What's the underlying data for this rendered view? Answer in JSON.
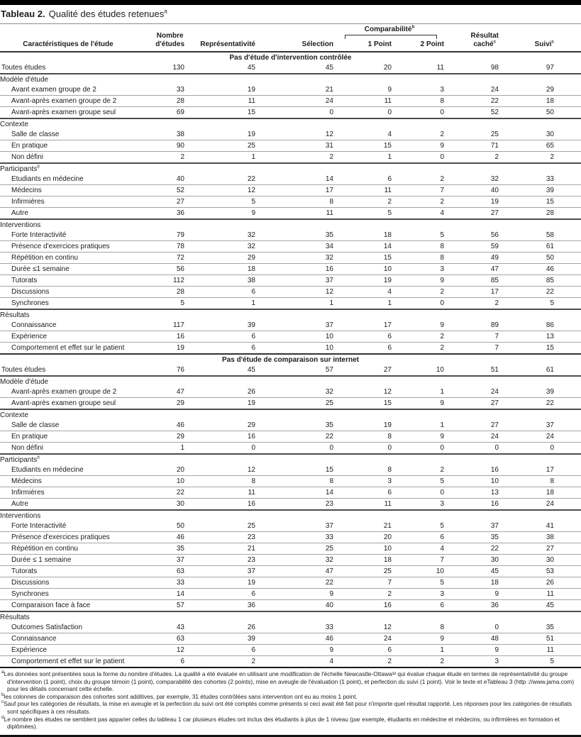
{
  "title": {
    "label": "Tableau 2.",
    "text": "Qualité des études retenues",
    "sup": "a"
  },
  "table": {
    "columns": {
      "characteristics": "Caractéristiques de l'étude",
      "n_studies": {
        "line1": "Nombre",
        "line2": "d'études"
      },
      "representativeness": "Représentativité",
      "selection": "Sélection",
      "comparability": {
        "label": "Comparabilité",
        "sup": "b",
        "point1": "1 Point",
        "point2": "2 Point"
      },
      "hidden_result": {
        "line1": "Résultat",
        "line2": "caché",
        "sup": "c"
      },
      "follow_up": {
        "label": "Suivi",
        "sup": "c"
      }
    },
    "sections": [
      {
        "header": "Pas d'étude d'intervention contrôlée",
        "rows": [
          {
            "type": "total",
            "label": "Toutes études",
            "values": [
              130,
              45,
              45,
              20,
              11,
              98,
              97
            ]
          },
          {
            "type": "group",
            "label": "Modèle d'étude"
          },
          {
            "type": "item",
            "label": "Avant examen groupe de 2",
            "values": [
              33,
              19,
              21,
              9,
              3,
              24,
              29
            ]
          },
          {
            "type": "item",
            "label": "Avant-après examen groupe de 2",
            "values": [
              28,
              11,
              24,
              11,
              8,
              22,
              18
            ]
          },
          {
            "type": "item",
            "label": "Avant-après examen groupe seul",
            "values": [
              69,
              15,
              0,
              0,
              0,
              52,
              50
            ]
          },
          {
            "type": "group",
            "label": "Contexte"
          },
          {
            "type": "item",
            "label": "Salle de classe",
            "values": [
              38,
              19,
              12,
              4,
              2,
              25,
              30
            ]
          },
          {
            "type": "item",
            "label": "En pratique",
            "values": [
              90,
              25,
              31,
              15,
              9,
              71,
              65
            ]
          },
          {
            "type": "item",
            "label": "Non défini",
            "values": [
              2,
              1,
              2,
              1,
              0,
              2,
              2
            ]
          },
          {
            "type": "group",
            "label": "Participants",
            "sup": "d"
          },
          {
            "type": "item",
            "label": "Etudiants en médecine",
            "values": [
              40,
              22,
              14,
              6,
              2,
              32,
              33
            ]
          },
          {
            "type": "item",
            "label": "Médecins",
            "values": [
              52,
              12,
              17,
              11,
              7,
              40,
              39
            ]
          },
          {
            "type": "item",
            "label": "Infirmières",
            "values": [
              27,
              5,
              8,
              2,
              2,
              19,
              15
            ]
          },
          {
            "type": "item",
            "label": "Autre",
            "values": [
              36,
              9,
              11,
              5,
              4,
              27,
              28
            ]
          },
          {
            "type": "group",
            "label": "Interventions"
          },
          {
            "type": "item",
            "label": "Forte Interactivité",
            "values": [
              79,
              32,
              35,
              18,
              5,
              56,
              58
            ]
          },
          {
            "type": "item",
            "label": "Présence d'exercices pratiques",
            "values": [
              78,
              32,
              34,
              14,
              8,
              59,
              61
            ]
          },
          {
            "type": "item",
            "label": "Répétition en continu",
            "values": [
              72,
              29,
              32,
              15,
              8,
              49,
              50
            ]
          },
          {
            "type": "item",
            "label": "Durée ≤1 semaine",
            "values": [
              56,
              18,
              16,
              10,
              3,
              47,
              46
            ]
          },
          {
            "type": "item",
            "label": "Tutorats",
            "values": [
              112,
              38,
              37,
              19,
              9,
              85,
              85
            ]
          },
          {
            "type": "item",
            "label": "Discussions",
            "values": [
              28,
              6,
              12,
              4,
              2,
              17,
              22
            ]
          },
          {
            "type": "item",
            "label": "Synchrones",
            "values": [
              5,
              1,
              1,
              1,
              0,
              2,
              5
            ]
          },
          {
            "type": "group",
            "label": "Résultats"
          },
          {
            "type": "item",
            "label": "Connaissance",
            "values": [
              117,
              39,
              37,
              17,
              9,
              89,
              86
            ]
          },
          {
            "type": "item",
            "label": "Expérience",
            "values": [
              16,
              6,
              10,
              6,
              2,
              7,
              13
            ]
          },
          {
            "type": "item",
            "label": "Comportement et effet sur le patient",
            "values": [
              19,
              6,
              10,
              6,
              2,
              7,
              15
            ]
          }
        ]
      },
      {
        "header": "Pas d'étude de comparaison sur internet",
        "rows": [
          {
            "type": "total",
            "label": "Toutes études",
            "values": [
              76,
              45,
              57,
              27,
              10,
              51,
              61
            ]
          },
          {
            "type": "group",
            "label": "Modèle d'étude"
          },
          {
            "type": "item",
            "label": "Avant-après examen groupe de 2",
            "values": [
              47,
              26,
              32,
              12,
              1,
              24,
              39
            ]
          },
          {
            "type": "item",
            "label": "Avant-après examen groupe seul",
            "values": [
              29,
              19,
              25,
              15,
              9,
              27,
              22
            ]
          },
          {
            "type": "group",
            "label": "Contexte"
          },
          {
            "type": "item",
            "label": "Salle de classe",
            "values": [
              46,
              29,
              35,
              19,
              1,
              27,
              37
            ]
          },
          {
            "type": "item",
            "label": "En pratique",
            "values": [
              29,
              16,
              22,
              8,
              9,
              24,
              24
            ]
          },
          {
            "type": "item",
            "label": "Non défini",
            "values": [
              1,
              0,
              0,
              0,
              0,
              0,
              0
            ]
          },
          {
            "type": "group",
            "label": "Participants",
            "sup": "d"
          },
          {
            "type": "item",
            "label": "Etudiants en médecine",
            "values": [
              20,
              12,
              15,
              8,
              2,
              16,
              17
            ]
          },
          {
            "type": "item",
            "label": "Médecins",
            "values": [
              10,
              8,
              8,
              3,
              5,
              10,
              8
            ]
          },
          {
            "type": "item",
            "label": "Infirmières",
            "values": [
              22,
              11,
              14,
              6,
              0,
              13,
              18
            ]
          },
          {
            "type": "item",
            "label": "Autre",
            "values": [
              30,
              16,
              23,
              11,
              3,
              16,
              24
            ]
          },
          {
            "type": "group",
            "label": "Interventions"
          },
          {
            "type": "item",
            "label": "Forte Interactivité",
            "values": [
              50,
              25,
              37,
              21,
              5,
              37,
              41
            ]
          },
          {
            "type": "item",
            "label": "Présence d'exercices pratiques",
            "values": [
              46,
              23,
              33,
              20,
              6,
              35,
              38
            ]
          },
          {
            "type": "item",
            "label": "Répétition en continu",
            "values": [
              35,
              21,
              25,
              10,
              4,
              22,
              27
            ]
          },
          {
            "type": "item",
            "label": "Durée ≤ 1 semaine",
            "values": [
              37,
              23,
              32,
              18,
              7,
              30,
              30
            ]
          },
          {
            "type": "item",
            "label": "Tutorats",
            "values": [
              63,
              37,
              47,
              25,
              10,
              45,
              53
            ]
          },
          {
            "type": "item",
            "label": "Discussions",
            "values": [
              33,
              19,
              22,
              7,
              5,
              18,
              26
            ]
          },
          {
            "type": "item",
            "label": "Synchrones",
            "values": [
              14,
              6,
              9,
              2,
              3,
              9,
              11
            ]
          },
          {
            "type": "item",
            "label": "Comparaison face à face",
            "values": [
              57,
              36,
              40,
              16,
              6,
              36,
              45
            ]
          },
          {
            "type": "group",
            "label": "Résultats"
          },
          {
            "type": "item",
            "label": "Outcomes Satisfaction",
            "values": [
              43,
              26,
              33,
              12,
              8,
              0,
              35
            ]
          },
          {
            "type": "item",
            "label": "Connaissance",
            "values": [
              63,
              39,
              46,
              24,
              9,
              48,
              51
            ]
          },
          {
            "type": "item",
            "label": "Expérience",
            "values": [
              12,
              6,
              9,
              6,
              1,
              9,
              11
            ]
          },
          {
            "type": "item",
            "label": "Comportement et effet sur le patient",
            "values": [
              6,
              2,
              4,
              2,
              2,
              3,
              5
            ]
          }
        ]
      }
    ]
  },
  "footnotes": [
    {
      "marker": "a",
      "text": "Les données sont présentées sous la forme du nombre d'études. La qualité a été évaluée en utilisant une modification de l'échelle Newcastle-Ottawa³² qui évalue chaque étude en termes de représentativité du groupe d'intervention (1 point), choix du groupe témoin (1 point), comparabilité des cohortes (2 points), mise en aveugle de l'évaluation (1 point), et perfection du suivi (1 point). Voir le texte et eTableau 3 (http ://www.jama.com) pour les détails concernant cette échelle."
    },
    {
      "marker": "b",
      "text": "les colonnes de comparaison des cohortes sont additives, par exemple, 31 études contrôlées sans intervention ont eu au moins 1 point."
    },
    {
      "marker": "c",
      "text": "Sauf pour les catégories de résultats, la mise en aveugle et la perfection du suivi ont été comptés comme présents si ceci avait été fait pour n'importe quel résultat rapporté. Les réponses pour les catégories de résultats sont spécifiques à ces résultats."
    },
    {
      "marker": "d",
      "text": "Le nombre des études ne semblent pas apparier celles du tableau 1 car plusieurs études ont inclus des étudiants à plus de 1 niveau (par exemple, étudiants en médecine et médecins, ou infirmières en formation et diplômées)."
    }
  ]
}
